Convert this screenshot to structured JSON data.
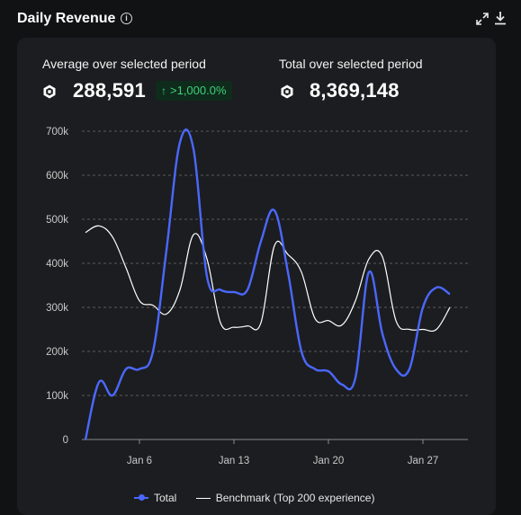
{
  "header": {
    "title": "Daily Revenue",
    "info_icon": "info-icon",
    "expand_icon": "expand-icon",
    "download_icon": "download-icon"
  },
  "stats": {
    "average": {
      "label": "Average over selected period",
      "value": "288,591",
      "change": ">1,000.0%",
      "icon": "robux-icon"
    },
    "total": {
      "label": "Total over selected period",
      "value": "8,369,148",
      "icon": "robux-icon"
    }
  },
  "colors": {
    "total": "#4a68ff",
    "benchmark": "#ffffff",
    "positive": "#3fd07a",
    "background": "#111214",
    "card": "#1c1d20"
  },
  "chart_data": {
    "type": "line",
    "x": [
      "Jan 2",
      "Jan 3",
      "Jan 4",
      "Jan 5",
      "Jan 6",
      "Jan 7",
      "Jan 8",
      "Jan 9",
      "Jan 10",
      "Jan 11",
      "Jan 12",
      "Jan 13",
      "Jan 14",
      "Jan 15",
      "Jan 16",
      "Jan 17",
      "Jan 18",
      "Jan 19",
      "Jan 20",
      "Jan 21",
      "Jan 22",
      "Jan 23",
      "Jan 24",
      "Jan 25",
      "Jan 26",
      "Jan 27",
      "Jan 28",
      "Jan 29",
      "Jan 30",
      "Jan 31"
    ],
    "series": [
      {
        "name": "Total",
        "values": [
          0,
          130000,
          100000,
          160000,
          160000,
          200000,
          430000,
          675000,
          660000,
          370000,
          340000,
          335000,
          340000,
          450000,
          520000,
          380000,
          200000,
          160000,
          155000,
          125000,
          140000,
          380000,
          240000,
          160000,
          160000,
          300000,
          345000,
          330000,
          null,
          null
        ]
      },
      {
        "name": "Benchmark (Top 200 experience)",
        "values": [
          470000,
          485000,
          460000,
          390000,
          315000,
          305000,
          285000,
          340000,
          465000,
          410000,
          265000,
          255000,
          258000,
          265000,
          440000,
          420000,
          380000,
          275000,
          270000,
          260000,
          315000,
          410000,
          415000,
          270000,
          250000,
          250000,
          250000,
          300000,
          null,
          null
        ]
      }
    ],
    "x_ticks": [
      "Jan 6",
      "Jan 13",
      "Jan 20",
      "Jan 27"
    ],
    "y_ticks": [
      "0",
      "100k",
      "200k",
      "300k",
      "400k",
      "500k",
      "600k",
      "700k"
    ],
    "ylim": [
      0,
      700000
    ],
    "grid": true,
    "legend_position": "bottom"
  },
  "legend": {
    "total_label": "Total",
    "benchmark_label": "Benchmark (Top 200 experience)"
  }
}
